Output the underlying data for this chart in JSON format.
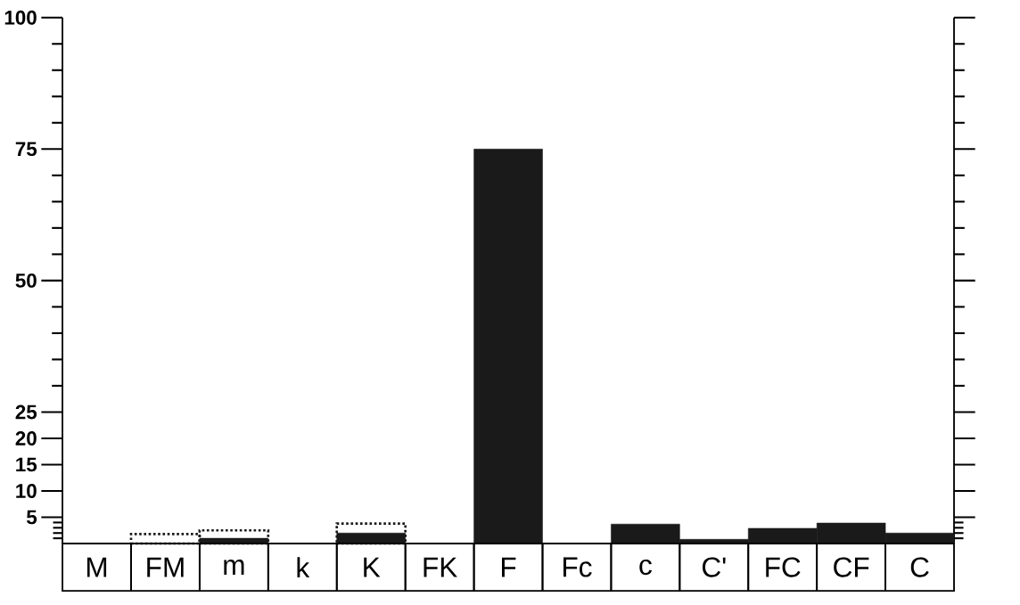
{
  "chart_data": {
    "type": "bar",
    "categories": [
      "M",
      "FM",
      "m",
      "k",
      "K",
      "FK",
      "F",
      "Fc",
      "c",
      "C'",
      "FC",
      "CF",
      "C"
    ],
    "series": [
      {
        "color": "#1a1a1a",
        "line_style": "dotted",
        "values": [
          null,
          1.8,
          2.5,
          null,
          3.8,
          null,
          null,
          null,
          null,
          null,
          null,
          null,
          null
        ]
      },
      {
        "color": "#1a1a1a",
        "values": [
          null,
          null,
          1,
          null,
          2,
          null,
          75,
          null,
          3.7,
          0.8,
          2.9,
          3.9,
          2
        ]
      }
    ],
    "ylim": [
      0,
      100
    ],
    "yticks": [
      {
        "value": 1,
        "label": null
      },
      {
        "value": 2,
        "label": null
      },
      {
        "value": 3,
        "label": null
      },
      {
        "value": 4,
        "label": null
      },
      5,
      10,
      15,
      20,
      25,
      {
        "value": 30,
        "label": null
      },
      {
        "value": 35,
        "label": null
      },
      {
        "value": 40,
        "label": null
      },
      {
        "value": 45,
        "label": null
      },
      50,
      {
        "value": 55,
        "label": null
      },
      {
        "value": 60,
        "label": null
      },
      {
        "value": 65,
        "label": null
      },
      {
        "value": 70,
        "label": null
      },
      75,
      {
        "value": 80,
        "label": null
      },
      {
        "value": 85,
        "label": null
      },
      {
        "value": 90,
        "label": null
      },
      {
        "value": 95,
        "label": null
      },
      100
    ],
    "grid": false,
    "legend": false
  }
}
